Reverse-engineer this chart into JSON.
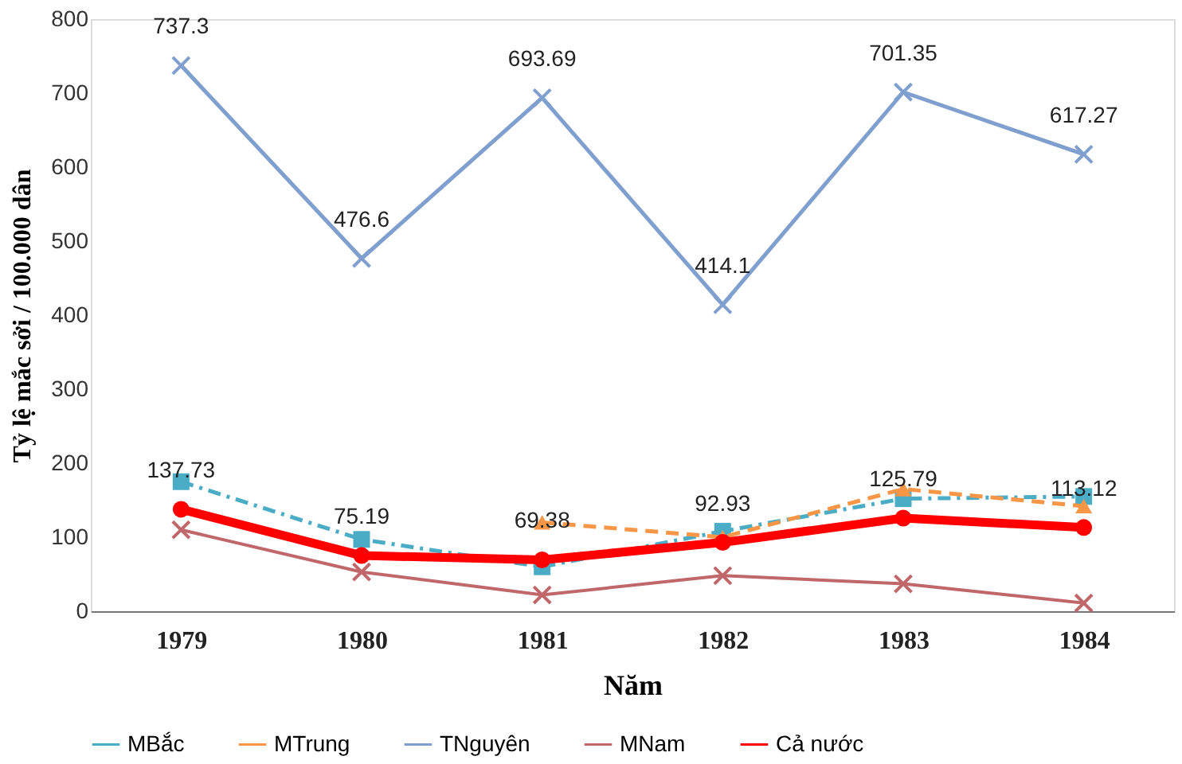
{
  "chart_data": {
    "type": "line",
    "xlabel": "Năm",
    "ylabel": "Tỷ lệ mắc sởi / 100.000 dân",
    "categories": [
      "1979",
      "1980",
      "1981",
      "1982",
      "1983",
      "1984"
    ],
    "ylim": [
      0,
      800
    ],
    "yticks": [
      0,
      100,
      200,
      300,
      400,
      500,
      600,
      700,
      800
    ],
    "grid": false,
    "legend": "bottom",
    "series": [
      {
        "name": "MBắc",
        "color": "#4bacc6",
        "marker": "square",
        "line_style": "dashdot",
        "values": [
          175,
          97,
          60,
          108,
          152,
          155
        ]
      },
      {
        "name": "MTrung",
        "color": "#f79646",
        "marker": "triangle",
        "line_style": "dashed",
        "values": [
          null,
          null,
          120,
          100,
          165,
          142
        ]
      },
      {
        "name": "TNguyên",
        "color": "#7f9fcf",
        "marker": "cross",
        "line_style": "solid",
        "values": [
          737.3,
          476.6,
          693.69,
          414.1,
          701.35,
          617.27
        ],
        "value_labels": [
          "737.3",
          "476.6",
          "693.69",
          "414.1",
          "701.35",
          "617.27"
        ]
      },
      {
        "name": "MNam",
        "color": "#c0676a",
        "marker": "cross",
        "line_style": "solid",
        "values": [
          110,
          53,
          22,
          48,
          37,
          11
        ]
      },
      {
        "name": "Cả nước",
        "color": "#ff0000",
        "marker": "circle",
        "line_style": "solid",
        "values": [
          137.73,
          75.19,
          69.38,
          92.93,
          125.79,
          113.12
        ],
        "value_labels": [
          "137.73",
          "75.19",
          "69.38",
          "92.93",
          "125.79",
          "113.12"
        ]
      }
    ]
  }
}
